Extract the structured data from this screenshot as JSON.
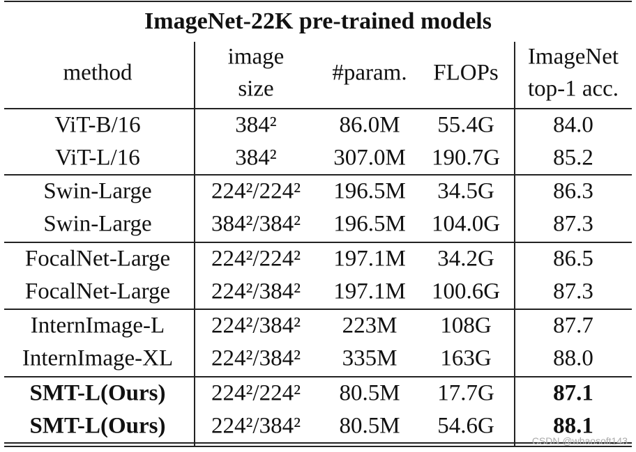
{
  "title": "ImageNet-22K pre-trained models",
  "columns": [
    [
      "method"
    ],
    [
      "image",
      "size"
    ],
    [
      "#param."
    ],
    [
      "FLOPs"
    ],
    [
      "ImageNet",
      "top-1 acc."
    ]
  ],
  "groups": [
    [
      [
        "ViT-B/16",
        "384²",
        "86.0M",
        "55.4G",
        "84.0"
      ],
      [
        "ViT-L/16",
        "384²",
        "307.0M",
        "190.7G",
        "85.2"
      ]
    ],
    [
      [
        "Swin-Large",
        "224²/224²",
        "196.5M",
        "34.5G",
        "86.3"
      ],
      [
        "Swin-Large",
        "384²/384²",
        "196.5M",
        "104.0G",
        "87.3"
      ]
    ],
    [
      [
        "FocalNet-Large",
        "224²/224²",
        "197.1M",
        "34.2G",
        "86.5"
      ],
      [
        "FocalNet-Large",
        "224²/384²",
        "197.1M",
        "100.6G",
        "87.3"
      ]
    ],
    [
      [
        "InternImage-L",
        "224²/384²",
        "223M",
        "108G",
        "87.7"
      ],
      [
        "InternImage-XL",
        "224²/384²",
        "335M",
        "163G",
        "88.0"
      ]
    ],
    [
      [
        "SMT-L(Ours)",
        "224²/224²",
        "80.5M",
        "17.7G",
        "87.1"
      ],
      [
        "SMT-L(Ours)",
        "224²/384²",
        "80.5M",
        "54.6G",
        "88.1"
      ]
    ]
  ],
  "watermark": "CSDN @whaosoft143"
}
